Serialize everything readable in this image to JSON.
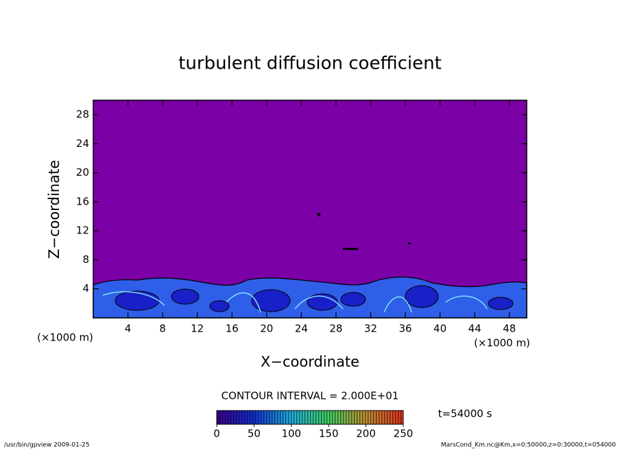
{
  "chart_data": {
    "type": "contour",
    "title": "turbulent diffusion coefficient",
    "x_label": "X−coordinate",
    "y_label": "Z−coordinate",
    "x_unit_label": "(×1000 m)",
    "y_unit_label": "(×1000 m)",
    "xlim": [
      0,
      50
    ],
    "xticks": [
      4,
      8,
      12,
      16,
      20,
      24,
      28,
      32,
      36,
      40,
      44,
      48
    ],
    "ylim": [
      0,
      30
    ],
    "yticks": [
      4,
      8,
      12,
      16,
      20,
      24,
      28
    ],
    "contour_interval_label": "CONTOUR INTERVAL = 2.000E+01",
    "colorbar": {
      "lim": [
        0,
        250
      ],
      "ticks": [
        0,
        50,
        100,
        150,
        200,
        250
      ]
    },
    "time_label": "t=54000 s",
    "footer_left": "/usr/bin/gpview  2009-01-25",
    "footer_right": "MarsCond_Km.nc@Km,x=0:50000,z=0:30000,t=054000"
  }
}
